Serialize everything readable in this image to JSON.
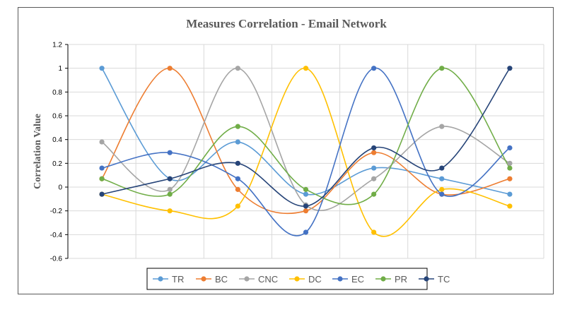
{
  "chart_data": {
    "type": "line",
    "title": "Measures Correlation - Email Network",
    "xlabel": "",
    "ylabel": "Correlation Value",
    "ylim": [
      -0.6,
      1.2
    ],
    "yticks": [
      "1.2",
      "1",
      "0.8",
      "0.6",
      "0.4",
      "0.2",
      "0",
      "-0.2",
      "-0.4",
      "-0.6"
    ],
    "ytick_values": [
      1.2,
      1,
      0.8,
      0.6,
      0.4,
      0.2,
      0,
      -0.2,
      -0.4,
      -0.6
    ],
    "x_count": 7,
    "grid": true,
    "smooth": true,
    "legend_position": "bottom",
    "series": [
      {
        "name": "TR",
        "color": "#5B9BD5",
        "values": [
          1,
          0.07,
          0.38,
          -0.06,
          0.16,
          0.07,
          -0.06
        ]
      },
      {
        "name": "BC",
        "color": "#ED7D31",
        "values": [
          0.07,
          1,
          -0.02,
          -0.2,
          0.29,
          -0.06,
          0.07
        ]
      },
      {
        "name": "CNC",
        "color": "#A5A5A5",
        "values": [
          0.38,
          -0.02,
          1,
          -0.15,
          0.07,
          0.51,
          0.2
        ]
      },
      {
        "name": "DC",
        "color": "#FFC000",
        "values": [
          -0.06,
          -0.2,
          -0.16,
          1,
          -0.38,
          -0.02,
          -0.16
        ]
      },
      {
        "name": "EC",
        "color": "#4472C4",
        "values": [
          0.16,
          0.29,
          0.07,
          -0.38,
          1,
          -0.06,
          0.33
        ]
      },
      {
        "name": "PR",
        "color": "#70AD47",
        "values": [
          0.07,
          -0.06,
          0.51,
          -0.02,
          -0.06,
          1,
          0.16
        ]
      },
      {
        "name": "TC",
        "color": "#264478",
        "values": [
          -0.06,
          0.07,
          0.2,
          -0.16,
          0.33,
          0.16,
          1
        ]
      }
    ]
  }
}
